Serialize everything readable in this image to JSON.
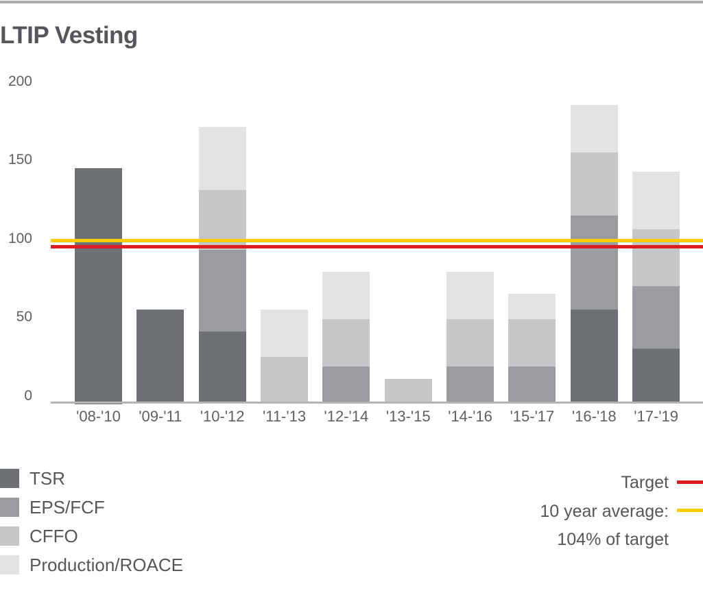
{
  "title": "LTIP Vesting",
  "chart_data": {
    "type": "bar",
    "stacked": true,
    "categories": [
      "'08-'10",
      "'09-'11",
      "'10-'12",
      "'11-'13",
      "'12-'14",
      "'13-'15",
      "'14-'16",
      "'15-'17",
      "'16-'18",
      "'17-'19"
    ],
    "series": [
      {
        "name": "TSR",
        "color": "#6d7175",
        "values": [
          150,
          60,
          46,
          0,
          0,
          0,
          0,
          0,
          60,
          35
        ]
      },
      {
        "name": "EPS/FCF",
        "color": "#9a9c9f",
        "values": [
          0,
          0,
          52,
          0,
          24,
          0,
          24,
          24,
          60,
          40
        ]
      },
      {
        "name": "CFFO",
        "color": "#c5c6c8",
        "values": [
          0,
          0,
          38,
          30,
          30,
          16,
          30,
          30,
          40,
          36
        ]
      },
      {
        "name": "Production/ROACE",
        "color": "#e2e3e4",
        "values": [
          0,
          0,
          40,
          30,
          30,
          0,
          30,
          16,
          30,
          37
        ]
      }
    ],
    "bar_totals": [
      150,
      60,
      176,
      60,
      84,
      16,
      84,
      70,
      190,
      148
    ],
    "reference_lines": [
      {
        "name": "Target",
        "value": 100,
        "color": "#dd1d21"
      },
      {
        "name": "10 year average",
        "value": 104,
        "color": "#fbce07"
      }
    ],
    "title": "LTIP Vesting",
    "xlabel": "",
    "ylabel": "",
    "ylim": [
      0,
      200
    ],
    "yticks": [
      0,
      50,
      100,
      150,
      200
    ],
    "grid": false,
    "legend_position": "bottom"
  },
  "legend_right": {
    "target_label": "Target",
    "average_line1": "10 year average:",
    "average_line2": "104% of target"
  }
}
